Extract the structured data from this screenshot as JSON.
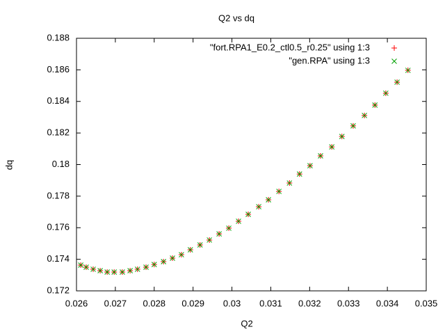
{
  "chart_data": {
    "type": "scatter",
    "title": "Q2 vs dq",
    "x_label": "Q2",
    "y_label": "dq",
    "x": [
      0.02611,
      0.02625,
      0.02643,
      0.02661,
      0.02679,
      0.02697,
      0.02718,
      0.02738,
      0.02757,
      0.02779,
      0.028,
      0.02824,
      0.02847,
      0.0287,
      0.02893,
      0.02918,
      0.02942,
      0.02967,
      0.02992,
      0.03017,
      0.03042,
      0.03069,
      0.03094,
      0.03121,
      0.03148,
      0.03174,
      0.03201,
      0.03228,
      0.03257,
      0.03283,
      0.03312,
      0.03341,
      0.03368,
      0.03396,
      0.03425,
      0.03453
    ],
    "series": [
      {
        "name": "\"fort.RPA1_E0.2_ctl0.5_r0.25\" using 1:3",
        "color": "#ff0000",
        "marker": "plus",
        "values": [
          0.17363,
          0.1735,
          0.17337,
          0.17328,
          0.17319,
          0.17319,
          0.17319,
          0.17328,
          0.17337,
          0.1735,
          0.17367,
          0.17385,
          0.17407,
          0.17429,
          0.1746,
          0.17491,
          0.17522,
          0.17561,
          0.17597,
          0.17641,
          0.17685,
          0.17733,
          0.17777,
          0.1783,
          0.17883,
          0.1794,
          0.17993,
          0.18055,
          0.18112,
          0.18178,
          0.18245,
          0.18311,
          0.18377,
          0.18452,
          0.18522,
          0.18597
        ]
      },
      {
        "name": "\"gen.RPA\" using 1:3",
        "color": "#00a000",
        "marker": "cross",
        "values": [
          0.17363,
          0.1735,
          0.17337,
          0.17328,
          0.17319,
          0.17319,
          0.17319,
          0.17328,
          0.17337,
          0.1735,
          0.17367,
          0.17385,
          0.17407,
          0.17429,
          0.1746,
          0.17491,
          0.17522,
          0.17561,
          0.17597,
          0.17641,
          0.17685,
          0.17733,
          0.17777,
          0.1783,
          0.17883,
          0.1794,
          0.17993,
          0.18055,
          0.18112,
          0.18178,
          0.18245,
          0.18311,
          0.18377,
          0.18452,
          0.18522,
          0.18597
        ]
      }
    ],
    "xlim": [
      0.026,
      0.035
    ],
    "xticks": [
      0.026,
      0.027,
      0.028,
      0.029,
      0.03,
      0.031,
      0.032,
      0.033,
      0.034,
      0.035
    ],
    "ylim": [
      0.172,
      0.188
    ],
    "yticks": [
      0.172,
      0.174,
      0.176,
      0.178,
      0.18,
      0.182,
      0.184,
      0.186,
      0.188
    ],
    "grid": false,
    "legend": "top-right"
  }
}
